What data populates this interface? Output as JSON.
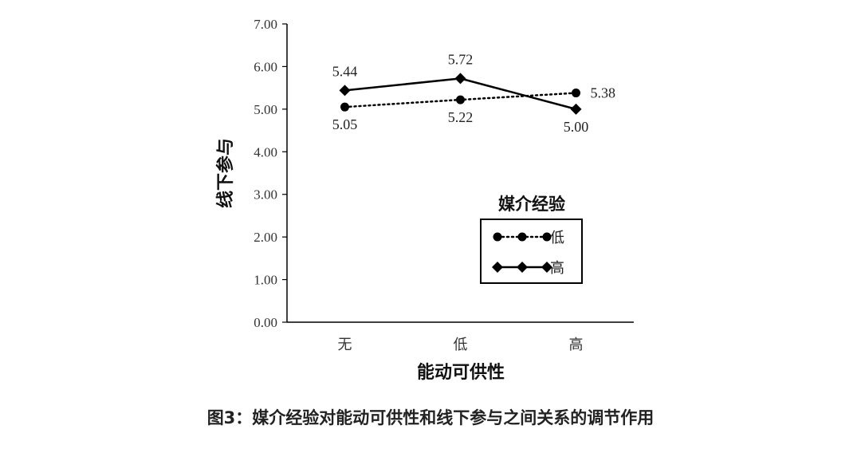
{
  "caption": "图3：媒介经验对能动可供性和线下参与之间关系的调节作用",
  "chart_data": {
    "type": "line",
    "xlabel": "能动可供性",
    "ylabel": "线下参与",
    "categories": [
      "无",
      "低",
      "高"
    ],
    "ylim": [
      0,
      7
    ],
    "yticks": [
      "0.00",
      "1.00",
      "2.00",
      "3.00",
      "4.00",
      "5.00",
      "6.00",
      "7.00"
    ],
    "grid": false,
    "legend": {
      "title": "媒介经验",
      "position": "bottom-right"
    },
    "series": [
      {
        "name": "低",
        "values": [
          5.05,
          5.22,
          5.38
        ],
        "labels": [
          "5.05",
          "5.22",
          "5.38"
        ],
        "style": "dotted",
        "marker": "circle",
        "color": "#000000"
      },
      {
        "name": "高",
        "values": [
          5.44,
          5.72,
          5.0
        ],
        "labels": [
          "5.44",
          "5.72",
          "5.00"
        ],
        "style": "solid",
        "marker": "diamond",
        "color": "#000000"
      }
    ]
  }
}
